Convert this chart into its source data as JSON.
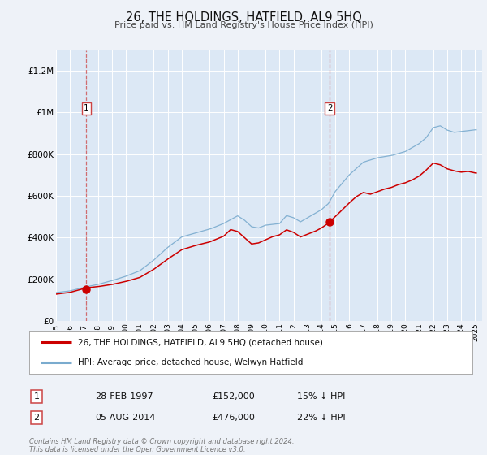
{
  "title": "26, THE HOLDINGS, HATFIELD, AL9 5HQ",
  "subtitle": "Price paid vs. HM Land Registry's House Price Index (HPI)",
  "background_color": "#eef2f8",
  "plot_bg_color": "#dce8f5",
  "ylabel_ticks": [
    "£0",
    "£200K",
    "£400K",
    "£600K",
    "£800K",
    "£1M",
    "£1.2M"
  ],
  "ytick_values": [
    0,
    200000,
    400000,
    600000,
    800000,
    1000000,
    1200000
  ],
  "ylim": [
    0,
    1300000
  ],
  "xlim_start": 1995.0,
  "xlim_end": 2025.5,
  "transaction1": {
    "date_num": 1997.167,
    "price": 152000,
    "label": "1"
  },
  "transaction2": {
    "date_num": 2014.583,
    "price": 476000,
    "label": "2"
  },
  "legend_line1": "26, THE HOLDINGS, HATFIELD, AL9 5HQ (detached house)",
  "legend_line2": "HPI: Average price, detached house, Welwyn Hatfield",
  "info1_label": "1",
  "info1_date": "28-FEB-1997",
  "info1_price": "£152,000",
  "info1_hpi": "15% ↓ HPI",
  "info2_label": "2",
  "info2_date": "05-AUG-2014",
  "info2_price": "£476,000",
  "info2_hpi": "22% ↓ HPI",
  "footer": "Contains HM Land Registry data © Crown copyright and database right 2024.\nThis data is licensed under the Open Government Licence v3.0.",
  "red_color": "#cc0000",
  "blue_color": "#7aabce",
  "dashed_color": "#cc4444"
}
